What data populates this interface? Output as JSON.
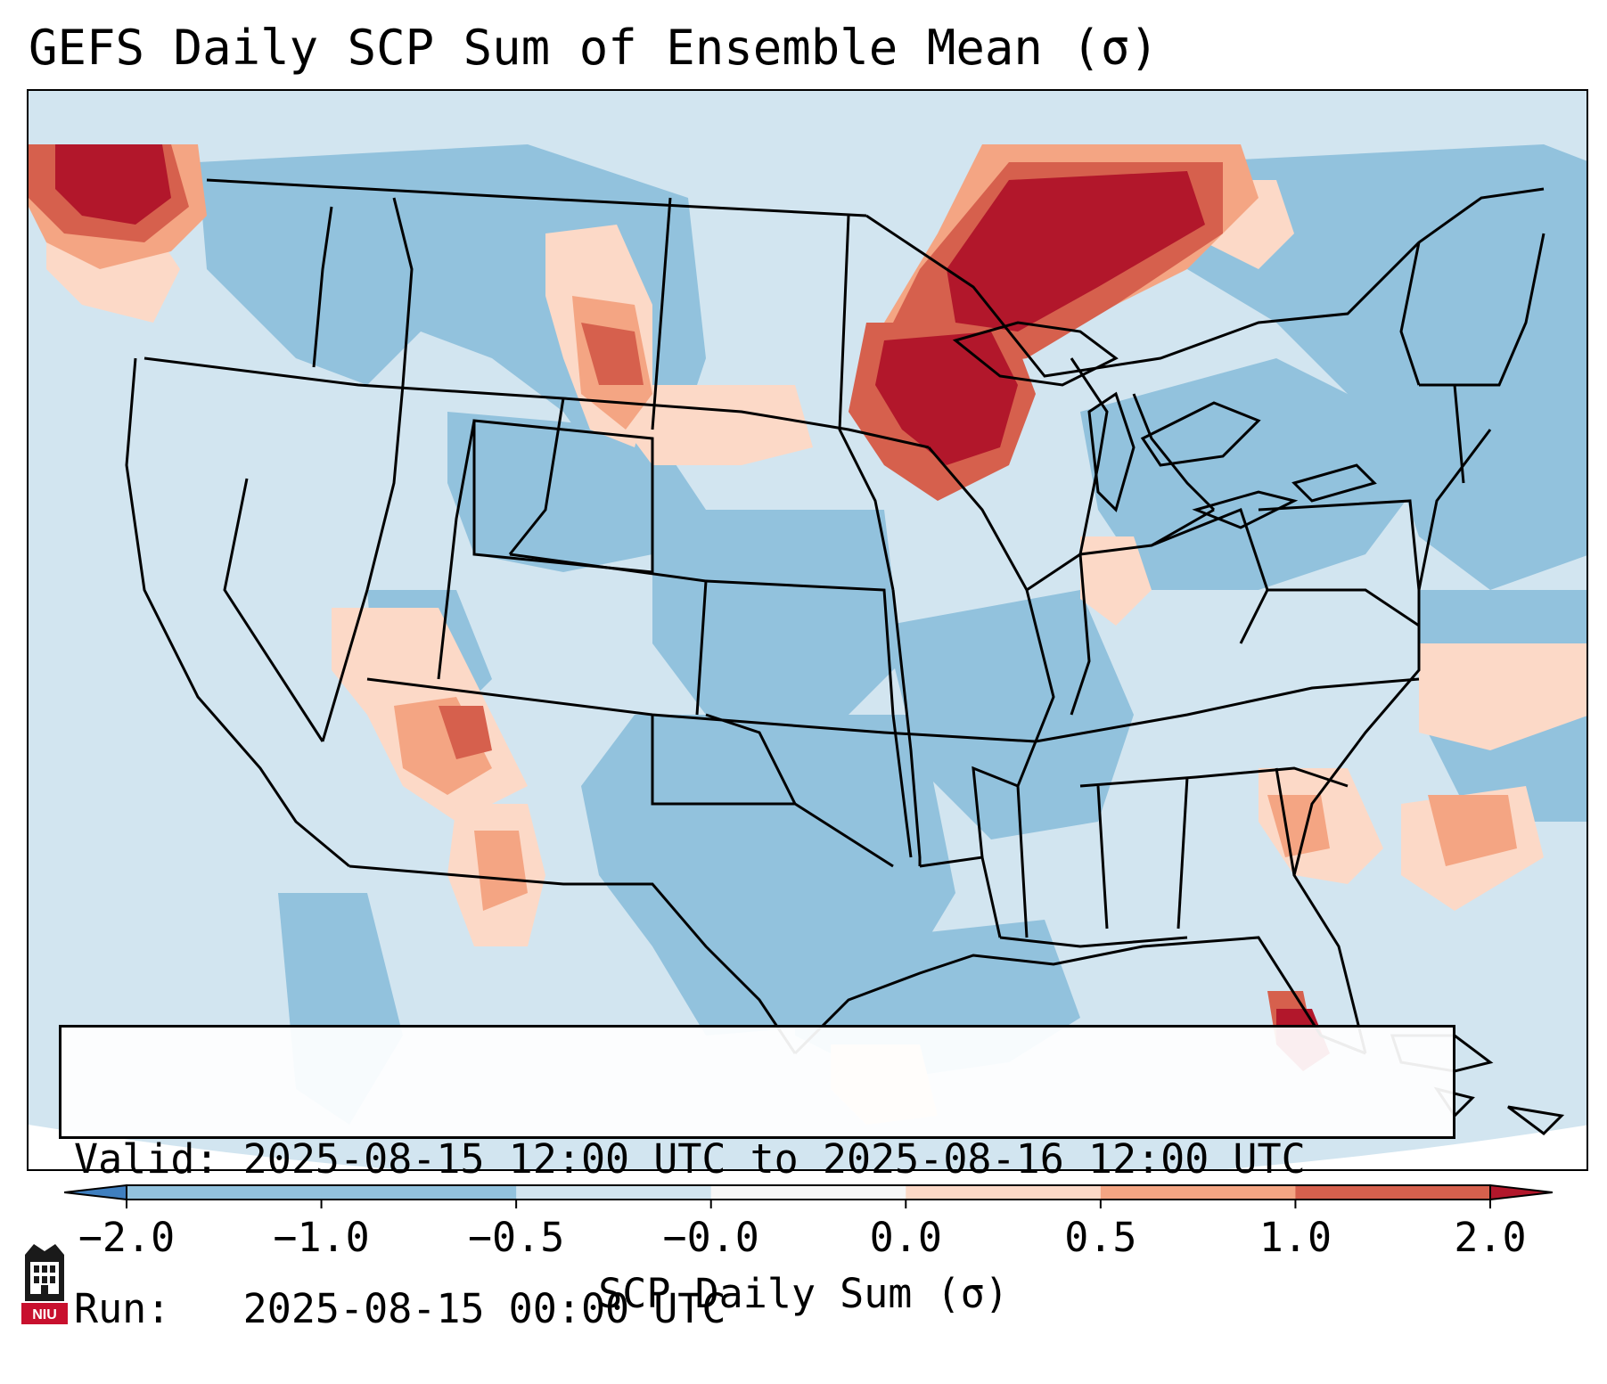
{
  "title": "GEFS Daily SCP Sum of Ensemble Mean (σ)",
  "info": {
    "valid_line": "Valid: 2025-08-15 12:00 UTC to 2025-08-16 12:00 UTC",
    "run_line": "Run:   2025-08-15 00:00 UTC"
  },
  "colorbar": {
    "label": "SCP Daily Sum (σ)",
    "ticks": [
      "−2.0",
      "−1.0",
      "−0.5",
      "−0.0",
      "0.0",
      "0.5",
      "1.0",
      "2.0"
    ],
    "colors": [
      "#3f7fbf",
      "#92c2dd",
      "#d2e5f0",
      "#f7f7f7",
      "#fcd9c7",
      "#f4a583",
      "#d6604d",
      "#b2172b"
    ],
    "extend": "both"
  },
  "map": {
    "background_color": "#d2e5f0",
    "negative_color": "#92c2dd",
    "light_positive_color": "#fcd9c7",
    "positive_color": "#f4a583",
    "strong_color": "#d6604d",
    "max_color": "#b2172b",
    "regions": [
      "Pacific Northwest high (≥2.0)",
      "Upper Midwest / Great Lakes high (≥2.0)",
      "Southwest Florida high (≥2.0)",
      "Northern Plains moderate",
      "Arizona / New Mexico moderate",
      "Carolinas moderate",
      "Western Atlantic moderate"
    ]
  },
  "logo": {
    "text": "NIU",
    "color": "#c8102e"
  }
}
